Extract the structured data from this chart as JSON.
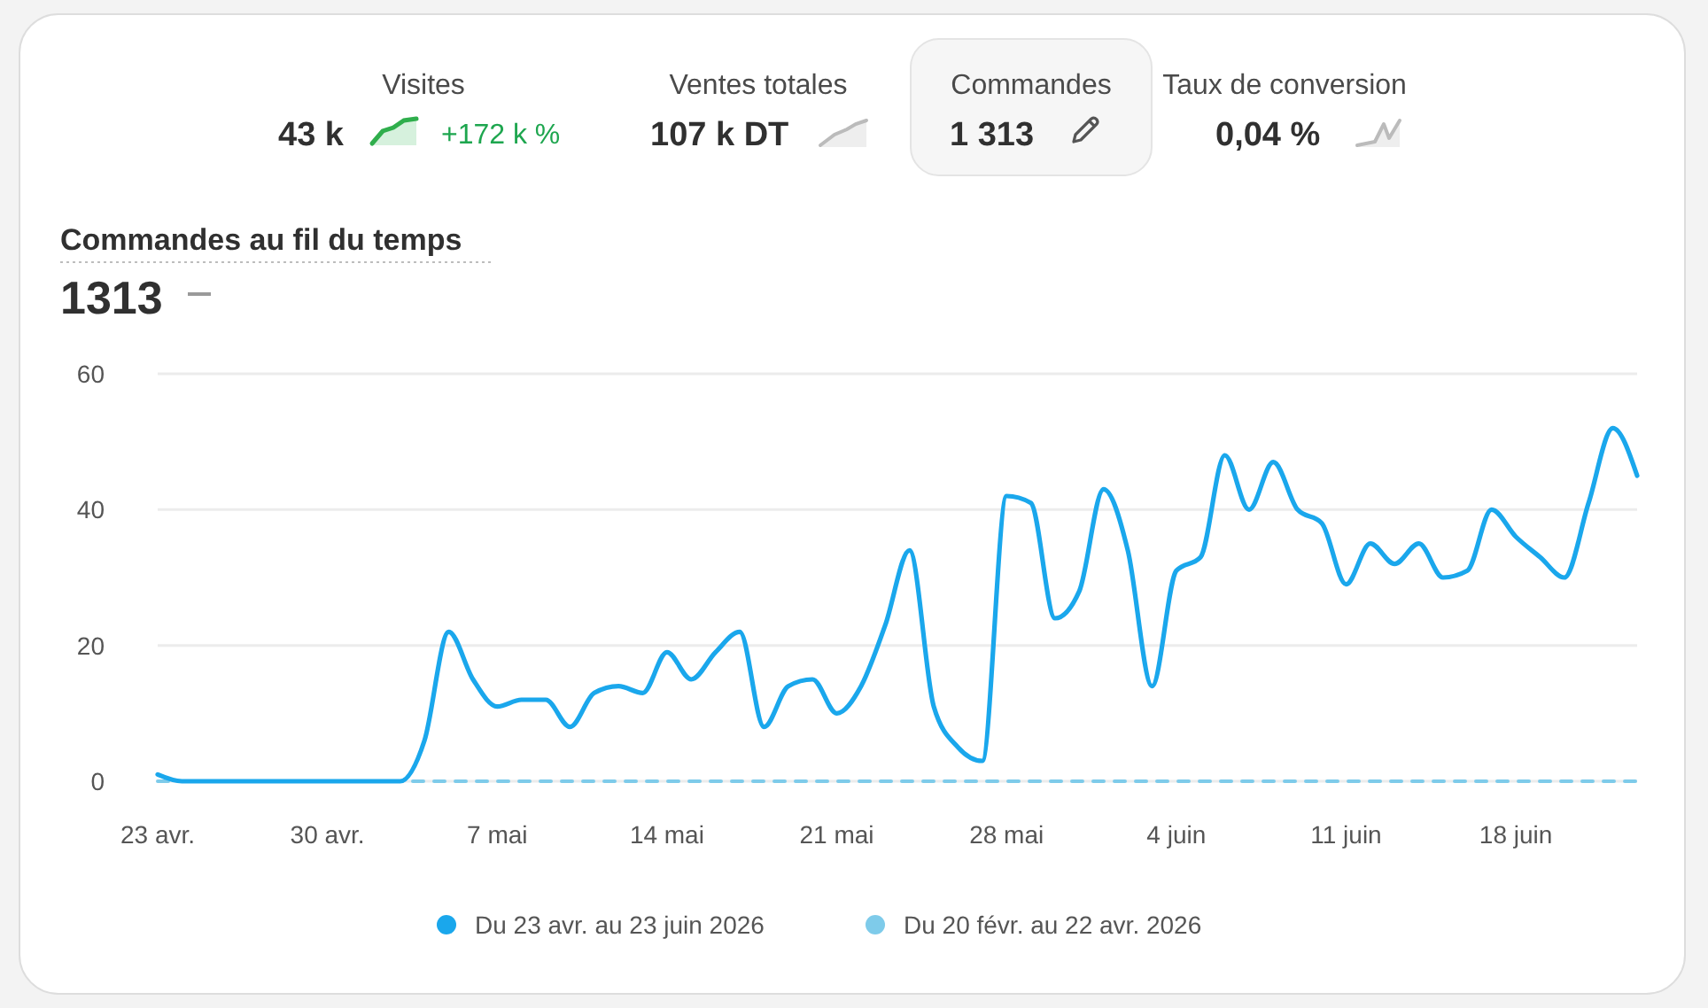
{
  "chart_data": [
    {
      "type": "other",
      "annotations": [
        "Visites",
        "43 k",
        "+172 k %",
        "Ventes totales",
        "107 k DT",
        "Commandes",
        "1 313",
        "Taux de conversion",
        "0,04 %"
      ]
    },
    {
      "type": "line",
      "title": "Commandes au fil du temps",
      "subtitle": "1313",
      "x": [
        "2026-04-23",
        "2026-04-24",
        "2026-04-25",
        "2026-04-26",
        "2026-04-27",
        "2026-04-28",
        "2026-04-29",
        "2026-04-30",
        "2026-05-01",
        "2026-05-02",
        "2026-05-03",
        "2026-05-04",
        "2026-05-05",
        "2026-05-06",
        "2026-05-07",
        "2026-05-08",
        "2026-05-09",
        "2026-05-10",
        "2026-05-11",
        "2026-05-12",
        "2026-05-13",
        "2026-05-14",
        "2026-05-15",
        "2026-05-16",
        "2026-05-17",
        "2026-05-18",
        "2026-05-19",
        "2026-05-20",
        "2026-05-21",
        "2026-05-22",
        "2026-05-23",
        "2026-05-24",
        "2026-05-25",
        "2026-05-26",
        "2026-05-27",
        "2026-05-28",
        "2026-05-29",
        "2026-05-30",
        "2026-05-31",
        "2026-06-01",
        "2026-06-02",
        "2026-06-03",
        "2026-06-04",
        "2026-06-05",
        "2026-06-06",
        "2026-06-07",
        "2026-06-08",
        "2026-06-09",
        "2026-06-10",
        "2026-06-11",
        "2026-06-12",
        "2026-06-13",
        "2026-06-14",
        "2026-06-15",
        "2026-06-16",
        "2026-06-17",
        "2026-06-18",
        "2026-06-19",
        "2026-06-20",
        "2026-06-21",
        "2026-06-22",
        "2026-06-23"
      ],
      "series": [
        {
          "name": "Du 23 avr. au 23 juin 2026",
          "color": "#1aa7ec",
          "line_style": "solid",
          "values": [
            1,
            0,
            0,
            0,
            0,
            0,
            0,
            0,
            0,
            0,
            0,
            6,
            22,
            15,
            11,
            12,
            12,
            8,
            13,
            14,
            13,
            19,
            15,
            19,
            22,
            8,
            14,
            15,
            10,
            14,
            23,
            34,
            11,
            5,
            3,
            42,
            41,
            24,
            28,
            43,
            34,
            14,
            31,
            33,
            48,
            40,
            47,
            40,
            38,
            29,
            35,
            32,
            35,
            30,
            31,
            40,
            36,
            33,
            30,
            41,
            52,
            45
          ]
        },
        {
          "name": "Du 20 févr. au 22 avr. 2026",
          "color": "#7ecbea",
          "line_style": "dashed",
          "values": [
            0,
            0,
            0,
            0,
            0,
            0,
            0,
            0,
            0,
            0,
            0,
            0,
            0,
            0,
            0,
            0,
            0,
            0,
            0,
            0,
            0,
            0,
            0,
            0,
            0,
            0,
            0,
            0,
            0,
            0,
            0,
            0,
            0,
            0,
            0,
            0,
            0,
            0,
            0,
            0,
            0,
            0,
            0,
            0,
            0,
            0,
            0,
            0,
            0,
            0,
            0,
            0,
            0,
            0,
            0,
            0,
            0,
            0,
            0,
            0,
            0,
            0
          ]
        }
      ],
      "xlim": [
        "2026-04-23",
        "2026-06-23"
      ],
      "xticks": [
        {
          "value": "2026-04-23",
          "label": "23 avr."
        },
        {
          "value": "2026-04-30",
          "label": "30 avr."
        },
        {
          "value": "2026-05-07",
          "label": "7 mai"
        },
        {
          "value": "2026-05-14",
          "label": "14 mai"
        },
        {
          "value": "2026-05-21",
          "label": "21 mai"
        },
        {
          "value": "2026-05-28",
          "label": "28 mai"
        },
        {
          "value": "2026-06-04",
          "label": "4 juin"
        },
        {
          "value": "2026-06-11",
          "label": "11 juin"
        },
        {
          "value": "2026-06-18",
          "label": "18 juin"
        }
      ],
      "ylim": [
        0,
        60
      ],
      "yticks": [
        0,
        20,
        40,
        60
      ],
      "grid": "y",
      "legend": "bottom",
      "marker": "none"
    }
  ]
}
